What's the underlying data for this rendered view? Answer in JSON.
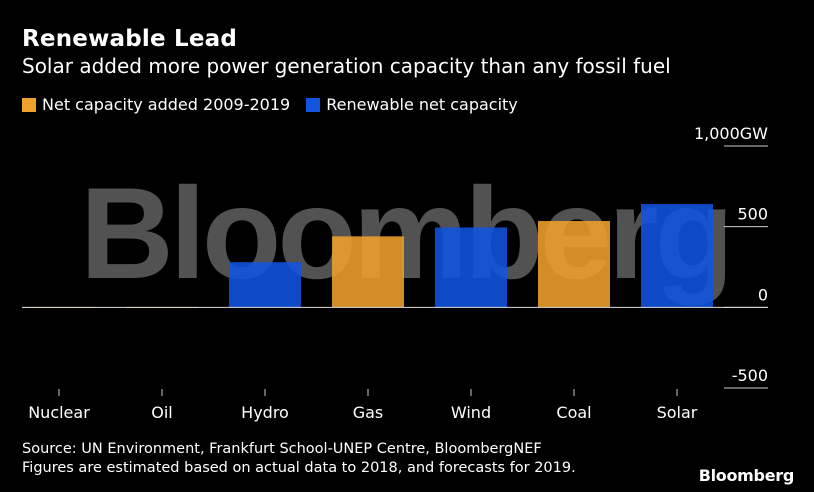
{
  "header": {
    "title": "Renewable Lead",
    "subtitle": "Solar added more power generation capacity than any fossil fuel"
  },
  "colors": {
    "orange": "#f0a02c",
    "blue": "#1054e0",
    "axis": "#cccccc",
    "background": "#000000"
  },
  "chart_data": {
    "type": "bar",
    "categories": [
      "Nuclear",
      "Oil",
      "Hydro",
      "Gas",
      "Wind",
      "Coal",
      "Solar"
    ],
    "values": [
      2,
      2,
      280,
      440,
      495,
      535,
      640
    ],
    "bar_series": [
      "orange",
      "orange",
      "blue",
      "orange",
      "blue",
      "orange",
      "blue"
    ],
    "series": [
      {
        "name": "Net capacity added 2009-2019",
        "color": "#f0a02c"
      },
      {
        "name": "Renewable net capacity",
        "color": "#1054e0"
      }
    ],
    "ylim": [
      -500,
      1000
    ],
    "yticks": [
      1000,
      500,
      0,
      -500
    ],
    "ytick_labels": [
      "1,000",
      "500",
      "0",
      "-500"
    ],
    "yunit": "GW",
    "grid": false,
    "legend_placement": "top-left"
  },
  "footer": {
    "source": "Source: UN Environment, Frankfurt School-UNEP Centre, BloombergNEF",
    "note": "Figures are estimated based on actual data to 2018, and forecasts for 2019."
  },
  "watermark": "Bloomberg",
  "brand": "Bloomberg"
}
